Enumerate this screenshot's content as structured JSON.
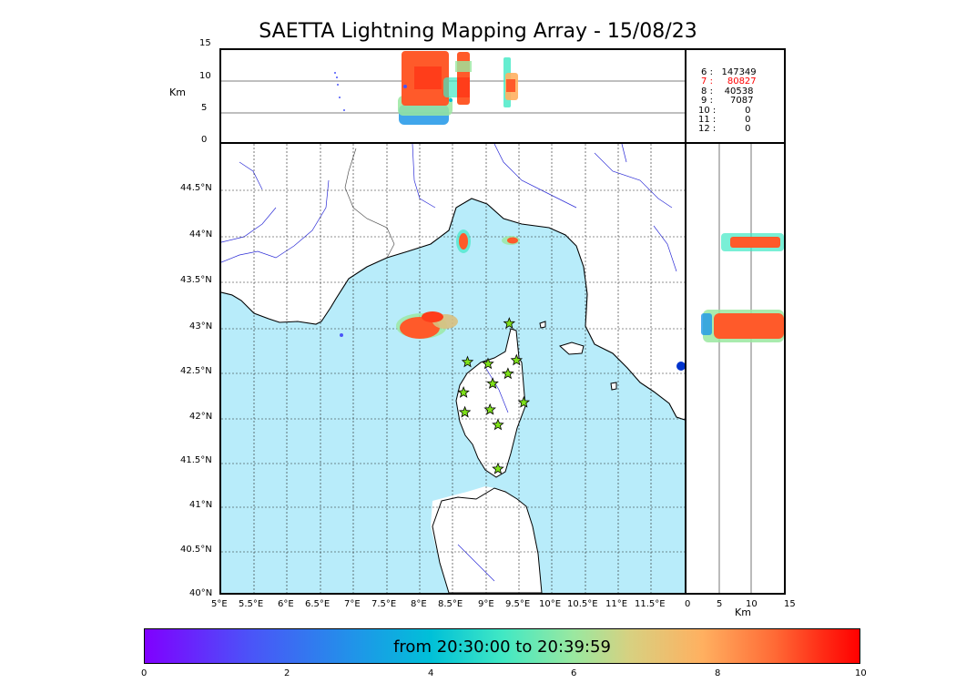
{
  "title": "SAETTA Lightning Mapping Array - 15/08/23",
  "units": {
    "km": "Km"
  },
  "top_axis_ticks": [
    "15",
    "10",
    "5",
    "0"
  ],
  "right_axis_ticks": [
    "0",
    "5",
    "10",
    "15"
  ],
  "lat_ticks": [
    "44.5°N",
    "44°N",
    "43.5°N",
    "43°N",
    "42.5°N",
    "42°N",
    "41.5°N",
    "41°N",
    "40.5°N",
    "40°N"
  ],
  "lon_ticks": [
    "5°E",
    "5.5°E",
    "6°E",
    "6.5°E",
    "7°E",
    "7.5°E",
    "8°E",
    "8.5°E",
    "9°E",
    "9.5°E",
    "10°E",
    "10.5°E",
    "11°E",
    "11.5°E"
  ],
  "station_counts": [
    {
      "stations": "6",
      "sep": ":",
      "count": "147349",
      "highlight": false
    },
    {
      "stations": "7",
      "sep": ":",
      "count": "80827",
      "highlight": true
    },
    {
      "stations": "8",
      "sep": ":",
      "count": "40538",
      "highlight": false
    },
    {
      "stations": "9",
      "sep": ":",
      "count": "7087",
      "highlight": false
    },
    {
      "stations": "10",
      "sep": ":",
      "count": "0",
      "highlight": false
    },
    {
      "stations": "11",
      "sep": ":",
      "count": "0",
      "highlight": false
    },
    {
      "stations": "12",
      "sep": ":",
      "count": "0",
      "highlight": false
    }
  ],
  "colorbar": {
    "label": "from 20:30:00 to 20:39:59",
    "ticks": [
      "0",
      "2",
      "4",
      "6",
      "8",
      "10"
    ]
  },
  "colors": {
    "sea": "#b8ecfa",
    "land": "#ffffff",
    "river": "#2b2bd6",
    "station": "#7ee01a",
    "highlight": "#ff0000"
  },
  "map_extent": {
    "lon": [
      5,
      12
    ],
    "lat": [
      40,
      45
    ]
  },
  "stations_lonlat": [
    [
      9.35,
      43.0
    ],
    [
      8.72,
      42.57
    ],
    [
      9.03,
      42.55
    ],
    [
      9.46,
      42.59
    ],
    [
      9.33,
      42.44
    ],
    [
      9.1,
      42.33
    ],
    [
      8.66,
      42.23
    ],
    [
      9.57,
      42.12
    ],
    [
      9.06,
      42.04
    ],
    [
      8.68,
      42.01
    ],
    [
      9.18,
      41.87
    ],
    [
      9.18,
      41.38
    ]
  ],
  "lightning_clusters": [
    {
      "lon": 8.01,
      "lat": 43.0,
      "altitude_km": 11,
      "hour_minute": "20:30–20:39"
    },
    {
      "lon": 8.64,
      "lat": 43.95,
      "altitude_km": 11,
      "hour_minute": "20:30–20:39"
    },
    {
      "lon": 9.35,
      "lat": 43.96,
      "altitude_km": 9,
      "hour_minute": "20:30–20:39"
    }
  ]
}
